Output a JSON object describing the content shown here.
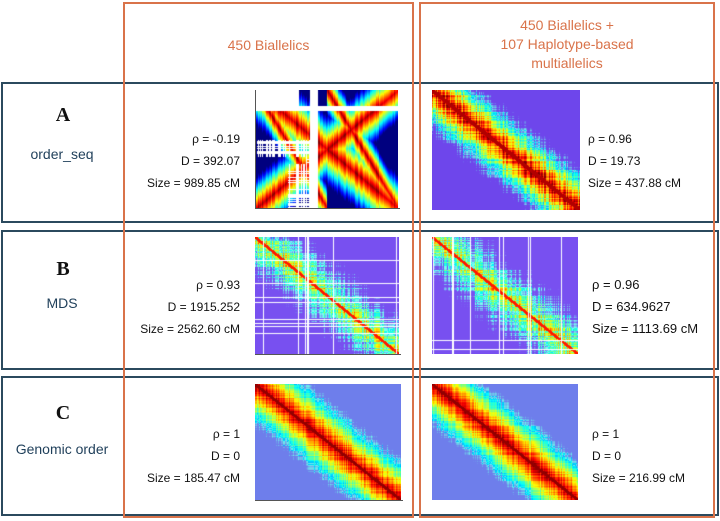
{
  "columns": [
    {
      "id": "col1",
      "header_lines": [
        "450 Biallelics"
      ]
    },
    {
      "id": "col2",
      "header_lines": [
        "450 Biallelics +",
        "107 Haplotype-based",
        "multiallelics"
      ]
    }
  ],
  "rows": [
    {
      "letter": "A",
      "method": "order_seq",
      "cells": [
        {
          "rho": "ρ = -0.19",
          "D": "D = 392.07",
          "size": "Size = 989.85 cM",
          "pattern": "scrambled"
        },
        {
          "rho": "ρ = 0.96",
          "D": "D = 19.73",
          "size": "Size = 437.88 cM",
          "pattern": "diagonal-dense"
        }
      ]
    },
    {
      "letter": "B",
      "method": "MDS",
      "cells": [
        {
          "rho": "ρ = 0.93",
          "D": "D = 1915.252",
          "size": "Size = 2562.60 cM",
          "pattern": "diagonal-faint"
        },
        {
          "rho": "ρ = 0.96",
          "D": "D = 634.9627",
          "size": "Size = 1113.69 cM",
          "pattern": "diagonal-faint"
        }
      ]
    },
    {
      "letter": "C",
      "method": "Genomic order",
      "cells": [
        {
          "rho": "ρ = 1",
          "D": "D = 0",
          "size": "Size = 185.47 cM",
          "pattern": "diagonal-clean"
        },
        {
          "rho": "ρ = 1",
          "D": "D = 0",
          "size": "Size = 216.99 cM",
          "pattern": "diagonal-clean"
        }
      ]
    }
  ],
  "colors": {
    "column_border": "#d9734a",
    "row_border": "#2b4a5e",
    "header_text": "#d9734a",
    "method_text": "#1f3f5a"
  }
}
